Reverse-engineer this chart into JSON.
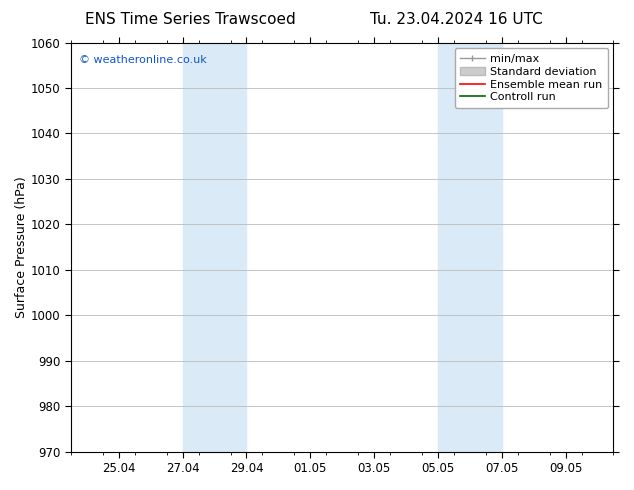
{
  "title_left": "ENS Time Series Trawscoed",
  "title_right": "Tu. 23.04.2024 16 UTC",
  "ylabel": "Surface Pressure (hPa)",
  "ylim": [
    970,
    1060
  ],
  "yticks": [
    970,
    980,
    990,
    1000,
    1010,
    1020,
    1030,
    1040,
    1050,
    1060
  ],
  "xtick_labels": [
    "25.04",
    "27.04",
    "29.04",
    "01.05",
    "03.05",
    "05.05",
    "07.05",
    "09.05"
  ],
  "xtick_positions": [
    2,
    4,
    6,
    8,
    10,
    12,
    14,
    16
  ],
  "x_min": 0.5,
  "x_max": 17.5,
  "shaded_bands": [
    {
      "x_start": 4,
      "x_end": 6
    },
    {
      "x_start": 12,
      "x_end": 14
    }
  ],
  "shaded_color": "#daeaf6",
  "copyright_text": "© weatheronline.co.uk",
  "copyright_color": "#1155cc",
  "bg_color": "#ffffff",
  "grid_color": "#bbbbbb",
  "title_fontsize": 11,
  "ylabel_fontsize": 9,
  "tick_fontsize": 8.5,
  "copyright_fontsize": 8,
  "legend_fontsize": 8
}
